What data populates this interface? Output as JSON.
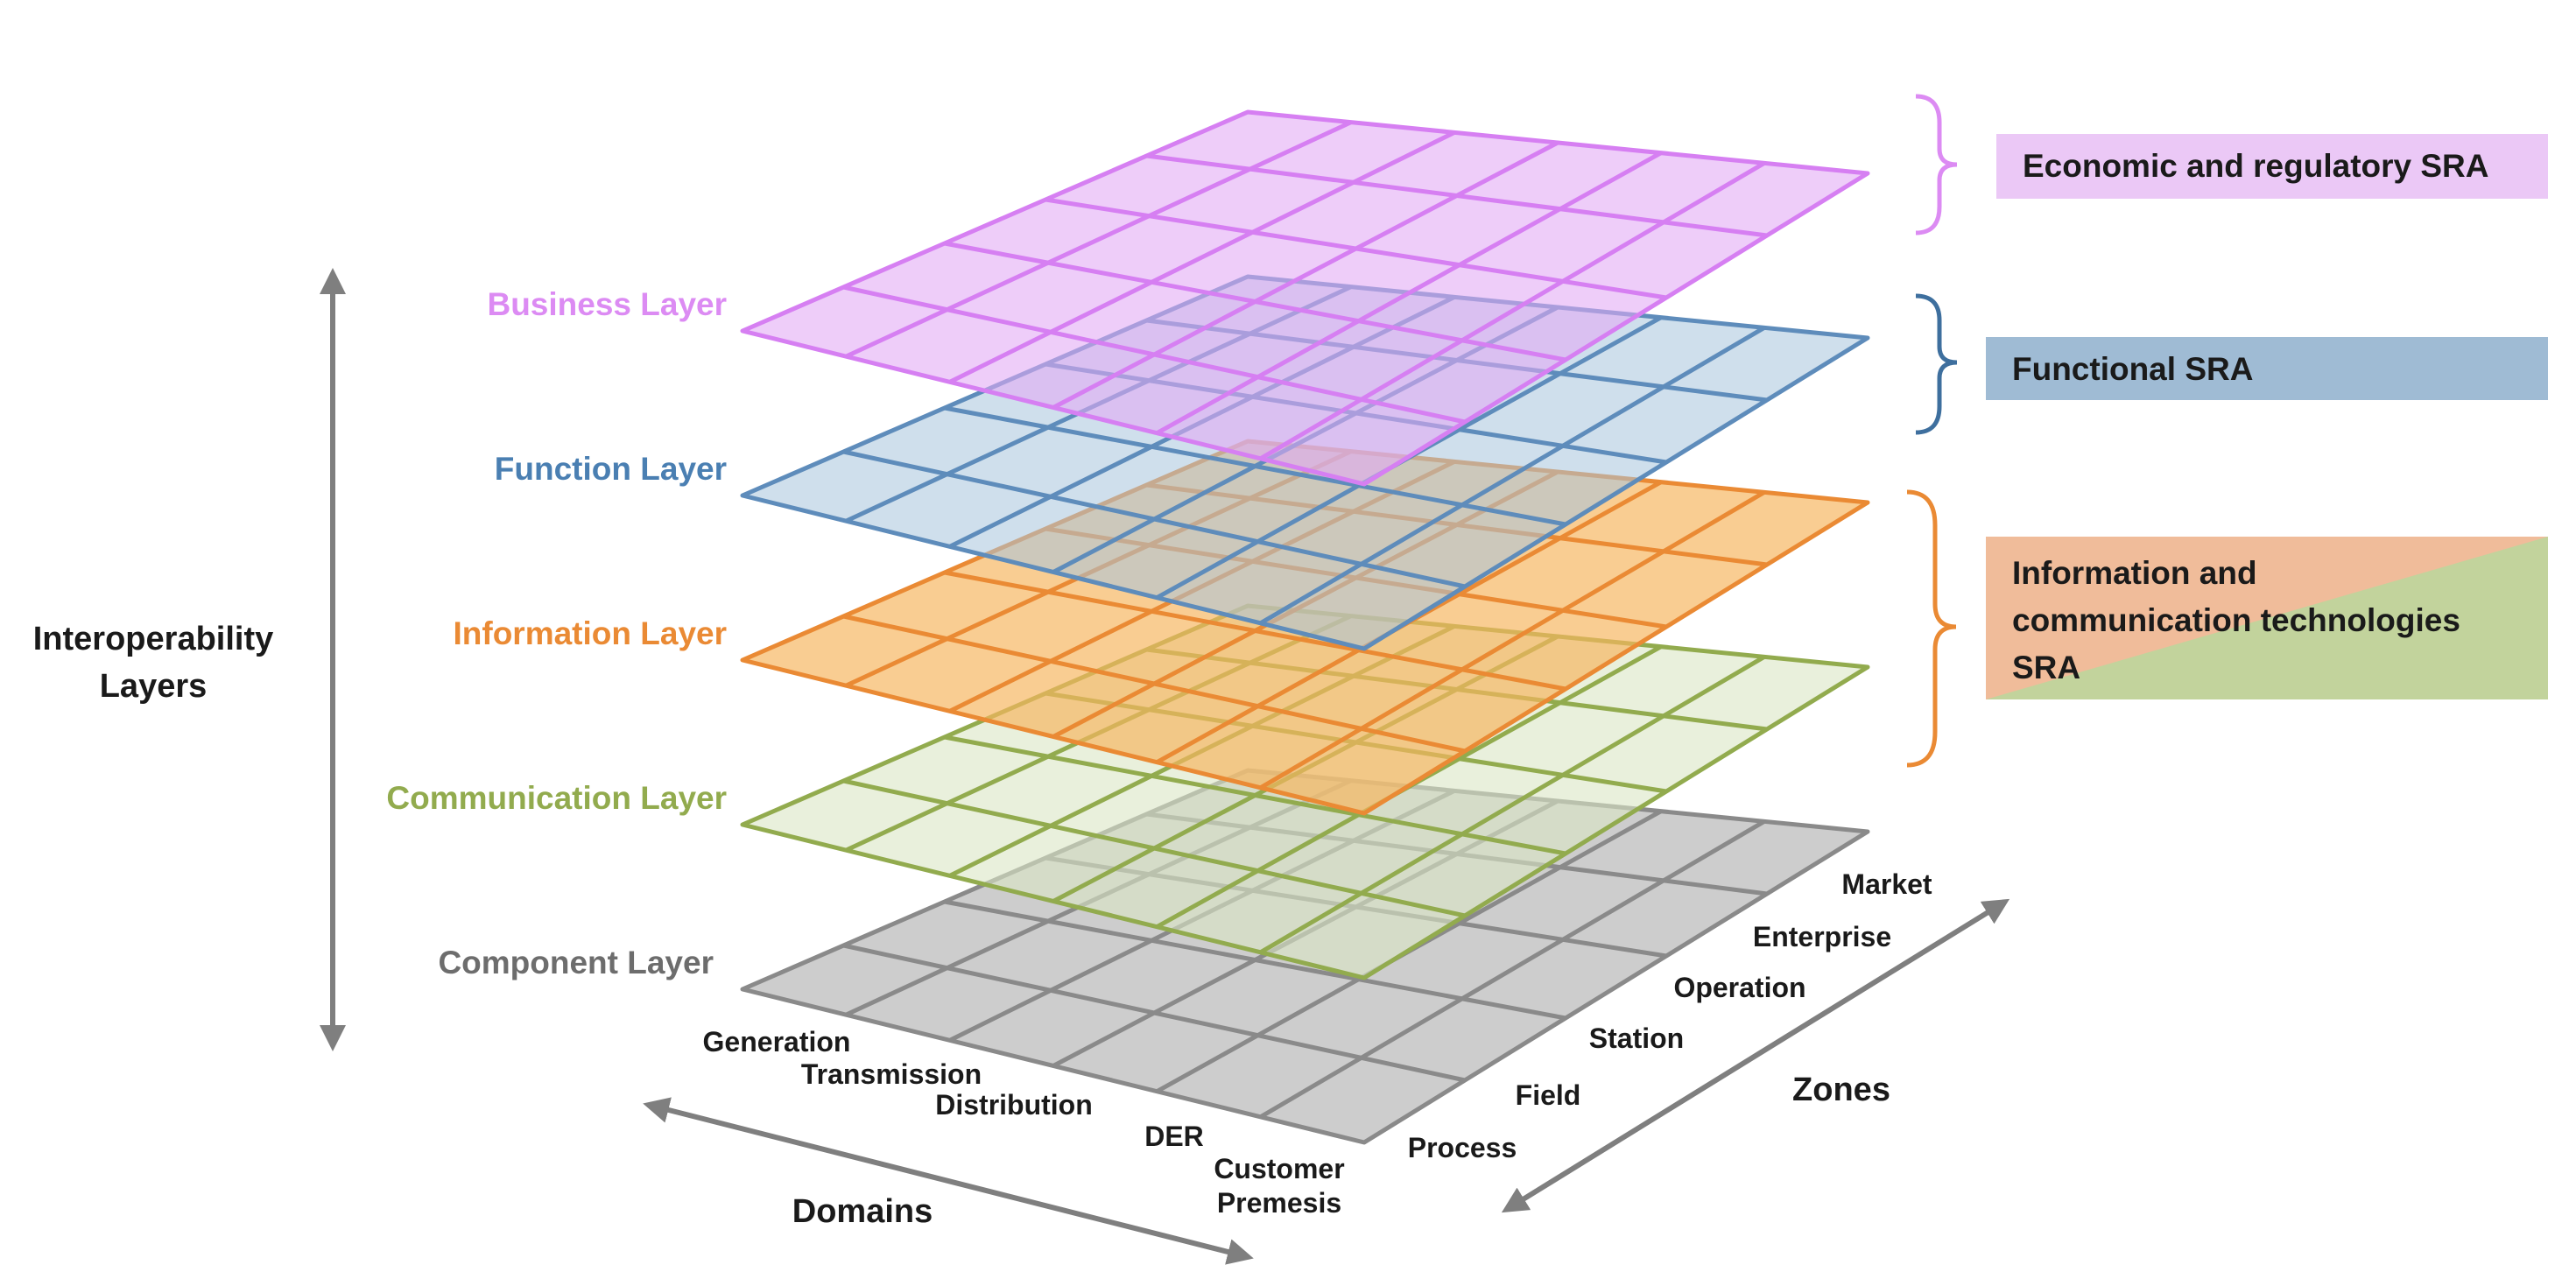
{
  "axis_labels": {
    "layers_line1": "Interoperability",
    "layers_line2": "Layers",
    "domains": "Domains",
    "zones": "Zones"
  },
  "layers": [
    {
      "id": "component",
      "label": "Component Layer",
      "fill": "#c4c4c4",
      "stroke": "#8a8a8a",
      "label_color": "#6d6d6d",
      "fill_opacity": 0.85
    },
    {
      "id": "communication",
      "label": "Communication Layer",
      "fill": "#dbe6c4",
      "stroke": "#92ab4e",
      "label_color": "#92ab4e",
      "fill_opacity": 0.6
    },
    {
      "id": "information",
      "label": "Information Layer",
      "fill": "#f6b55f",
      "stroke": "#ea8a34",
      "label_color": "#ea8a34",
      "fill_opacity": 0.68
    },
    {
      "id": "function",
      "label": "Function Layer",
      "fill": "#a8c4dd",
      "stroke": "#5e8cbb",
      "label_color": "#4a7fb2",
      "fill_opacity": 0.55
    },
    {
      "id": "business",
      "label": "Business Layer",
      "fill": "#e2a8f5",
      "stroke": "#d67ff2",
      "label_color": "#dc8bf3",
      "fill_opacity": 0.58
    }
  ],
  "domains": [
    "Generation",
    "Transmission",
    "Distribution",
    "DER",
    "Customer Premesis"
  ],
  "zones": [
    "Process",
    "Field",
    "Station",
    "Operation",
    "Enterprise",
    "Market"
  ],
  "sra_boxes": [
    {
      "id": "economic",
      "label": "Economic and regulatory SRA",
      "fill": "#ebc8f6",
      "bracket": "#dc8bf3"
    },
    {
      "id": "functional",
      "label": "Functional SRA",
      "fill": "#9fbbd4",
      "bracket": "#3e6f9e"
    },
    {
      "id": "ict",
      "label_lines": [
        "Information and",
        "communication technologies",
        "SRA"
      ],
      "fill_a": "#f0bc9a",
      "fill_b": "#c2d39c",
      "bracket": "#ea8a34"
    }
  ],
  "colors": {
    "axis_arrow": "#7f7f7f",
    "text": "#1a1a1a"
  }
}
